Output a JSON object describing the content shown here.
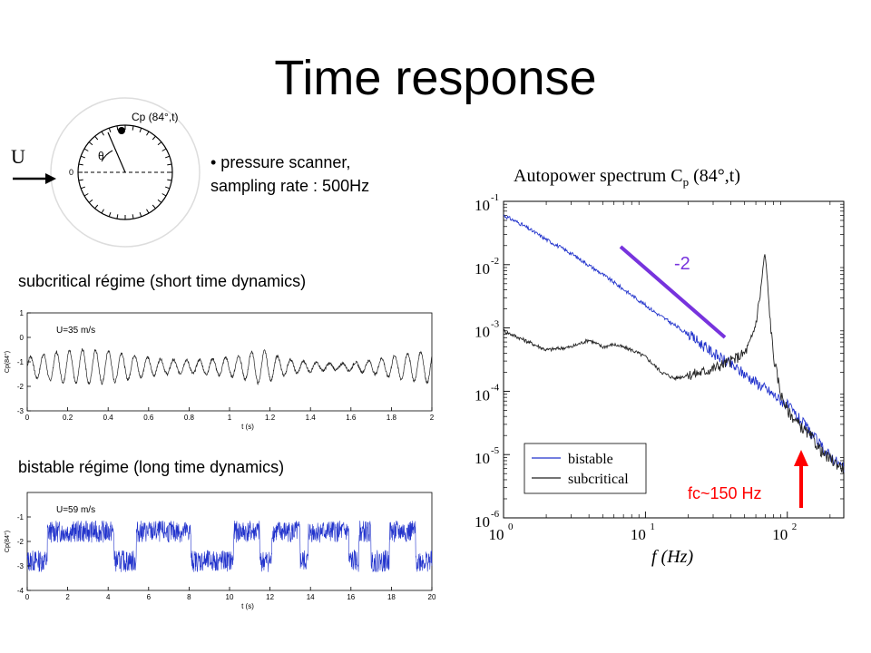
{
  "slide": {
    "title": "Time response",
    "bullet_lines": [
      "• pressure scanner,",
      "sampling rate : 500Hz"
    ],
    "subcritical_heading": "subcritical régime (short time dynamics)",
    "bistable_heading": "bistable régime (long time dynamics)"
  },
  "sketch": {
    "flow_label": "U",
    "angle_label": "θ",
    "zero_label": "0",
    "probe_label": "Cp (84°,t)"
  },
  "colors": {
    "blue": "#2233cc",
    "black": "#222222",
    "purple": "#7733dd",
    "red": "#ff0000"
  },
  "chart_data": [
    {
      "type": "line",
      "annotation": "U=35 m/s",
      "xlabel": "t (s)",
      "ylabel": "Cp(84°)",
      "xlim": [
        0,
        2
      ],
      "ylim": [
        -3,
        1
      ],
      "xticks": [
        "0",
        "0.2",
        "0.4",
        "0.6",
        "0.8",
        "1",
        "1.2",
        "1.4",
        "1.6",
        "1.8",
        "2"
      ],
      "yticks": [
        "1",
        "0",
        "-1",
        "-2",
        "-3"
      ],
      "series": [
        {
          "color": "#222222",
          "mean": -1.2,
          "amplitude": 0.55,
          "dominant_frequency_hz": 70
        }
      ]
    },
    {
      "type": "line",
      "annotation": "U=59 m/s",
      "xlabel": "t (s)",
      "ylabel": "Cp(84°)",
      "xlim": [
        0,
        20
      ],
      "ylim": [
        -4,
        0
      ],
      "xticks": [
        "0",
        "2",
        "4",
        "6",
        "8",
        "10",
        "12",
        "14",
        "16",
        "18",
        "20"
      ],
      "yticks": [
        "-1",
        "-2",
        "-3",
        "-4"
      ],
      "series": [
        {
          "color": "#2233cc",
          "states": [
            -1.6,
            -2.8
          ],
          "switch_times": [
            1.0,
            4.3,
            5.4,
            8.1,
            10.2,
            11.5,
            12.1,
            13.5,
            13.9,
            15.9,
            16.4,
            17.0,
            17.9,
            19.2
          ]
        }
      ]
    },
    {
      "type": "line",
      "title": "Autopower spectrum C",
      "title_sub": "p",
      "title_tail": " (84°,t)",
      "xlabel": "f (Hz)",
      "xscale": "log",
      "yscale": "log",
      "xlim": [
        1,
        250
      ],
      "ylim": [
        1e-06,
        0.1
      ],
      "xticks": [
        {
          "base": "10",
          "exp": "0"
        },
        {
          "base": "10",
          "exp": "1"
        },
        {
          "base": "10",
          "exp": "2"
        }
      ],
      "yticks": [
        {
          "base": "10",
          "exp": "-1"
        },
        {
          "base": "10",
          "exp": "-2"
        },
        {
          "base": "10",
          "exp": "-3"
        },
        {
          "base": "10",
          "exp": "-4"
        },
        {
          "base": "10",
          "exp": "-5"
        },
        {
          "base": "10",
          "exp": "-6"
        }
      ],
      "legend": {
        "position": "bottom-left",
        "entries": [
          {
            "name": "bistable",
            "color": "#2233cc"
          },
          {
            "name": "subcritical",
            "color": "#222222"
          }
        ]
      },
      "series": [
        {
          "name": "bistable",
          "color": "#2233cc",
          "points": [
            [
              1,
              0.06
            ],
            [
              1.3,
              0.045
            ],
            [
              2,
              0.025
            ],
            [
              3,
              0.015
            ],
            [
              5,
              0.007
            ],
            [
              8,
              0.0033
            ],
            [
              12,
              0.0017
            ],
            [
              20,
              0.0008
            ],
            [
              30,
              0.0004
            ],
            [
              45,
              0.00022
            ],
            [
              70,
              0.00011
            ],
            [
              100,
              6e-05
            ],
            [
              140,
              2.5e-05
            ],
            [
              180,
              1.2e-05
            ],
            [
              250,
              6e-06
            ]
          ]
        },
        {
          "name": "subcritical",
          "color": "#222222",
          "points": [
            [
              1,
              0.0009
            ],
            [
              1.5,
              0.0006
            ],
            [
              2,
              0.00045
            ],
            [
              3,
              0.0005
            ],
            [
              4,
              0.00065
            ],
            [
              5,
              0.0005
            ],
            [
              6,
              0.00055
            ],
            [
              8,
              0.00045
            ],
            [
              10,
              0.00035
            ],
            [
              13,
              0.0002
            ],
            [
              16,
              0.00016
            ],
            [
              20,
              0.00018
            ],
            [
              25,
              0.0002
            ],
            [
              30,
              0.00023
            ],
            [
              40,
              0.0003
            ],
            [
              50,
              0.0004
            ],
            [
              55,
              0.0006
            ],
            [
              60,
              0.0012
            ],
            [
              65,
              0.004
            ],
            [
              68,
              0.011
            ],
            [
              70,
              0.014
            ],
            [
              72,
              0.006
            ],
            [
              76,
              0.0012
            ],
            [
              80,
              0.00035
            ],
            [
              90,
              9e-05
            ],
            [
              100,
              5e-05
            ],
            [
              120,
              3e-05
            ],
            [
              150,
              1.8e-05
            ],
            [
              180,
              1e-05
            ],
            [
              250,
              6e-06
            ]
          ]
        }
      ],
      "annotations": {
        "slope_label": "-2",
        "fc_label": "fc~150 Hz"
      }
    }
  ]
}
